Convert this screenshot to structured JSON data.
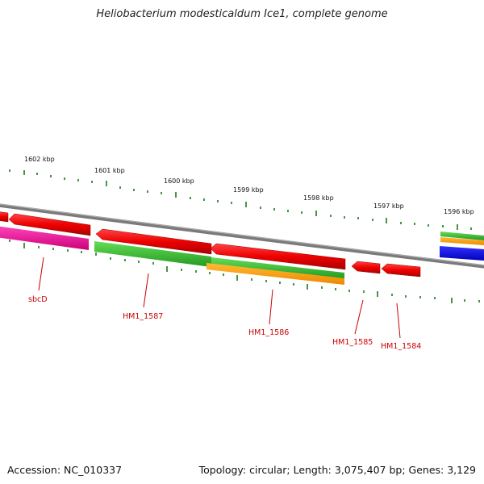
{
  "title": "Heliobacterium modesticaldum Ice1, complete genome",
  "footer": {
    "accession": "Accession: NC_010337",
    "summary": "Topology: circular; Length: 3,075,407 bp; Genes: 3,129"
  },
  "scale_labels": [
    "1602 kbp",
    "1601 kbp",
    "1600 kbp",
    "1599 kbp",
    "1598 kbp",
    "1597 kbp",
    "1596 kbp"
  ],
  "gene_labels": [
    "sbcD",
    "HM1_1587",
    "HM1_1586",
    "HM1_1585",
    "HM1_1584"
  ],
  "colors": {
    "red": "#ee0000",
    "green": "#33cc33",
    "orange": "#ff9900",
    "magenta": "#ee1199",
    "blue": "#0000ee",
    "backbone": "#808080",
    "ticks": "#1a7a1a",
    "label": "#cc0000"
  }
}
